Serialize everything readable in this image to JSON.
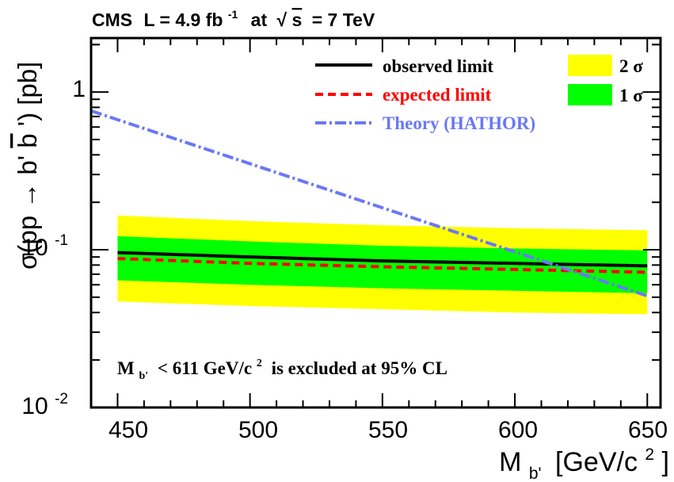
{
  "header": {
    "experiment": "CMS",
    "lumi_prefix": "L = 4.9 fb",
    "lumi_exp": "-1",
    "energy_prefix": "at",
    "sqrt_s": "s",
    "energy_value": "= 7 TeV"
  },
  "axes": {
    "ylabel_main": "σ(pp → b'",
    "ylabel_bbar": "b",
    "ylabel_tail": "') [pb]",
    "xlabel_main": "M",
    "xlabel_sub": "b'",
    "xlabel_unit": "[GeV/c",
    "xlabel_exp": "2",
    "xlabel_close": "]",
    "x_ticks": [
      "450",
      "500",
      "550",
      "600",
      "650"
    ],
    "y_tick_one": "1",
    "y_tick_base": "10",
    "y_tick_exp_m1": "-1",
    "y_tick_exp_m2": "-2"
  },
  "legend": {
    "observed": "observed limit",
    "expected": "expected limit",
    "theory": "Theory (HATHOR)",
    "two_sigma": "2 σ",
    "one_sigma": "1 σ"
  },
  "annotation": {
    "main": "M",
    "sub": "b'",
    "text": "< 611 GeV/c",
    "exp": "2",
    "tail": "is excluded at 95% CL"
  },
  "colors": {
    "observed": "#000000",
    "expected": "#ff0000",
    "theory": "#6a78f5",
    "two_sigma": "#ffff00",
    "one_sigma": "#00ff00",
    "frame": "#000000"
  },
  "chart_data": {
    "type": "line",
    "x_range": [
      440,
      655
    ],
    "y_range": [
      0.01,
      2.2
    ],
    "y_scale": "log",
    "grid": false,
    "legend_position": "top-right",
    "x": [
      450,
      500,
      550,
      600,
      650
    ],
    "series": [
      {
        "name": "observed limit",
        "values": [
          0.096,
          0.09,
          0.085,
          0.082,
          0.079
        ]
      },
      {
        "name": "expected limit",
        "values": [
          0.088,
          0.082,
          0.078,
          0.075,
          0.072
        ]
      },
      {
        "name": "Theory (HATHOR)",
        "values": [
          0.62,
          0.35,
          0.18,
          0.095,
          0.051
        ]
      }
    ],
    "bands": [
      {
        "name": "2 σ",
        "lower": [
          0.047,
          0.044,
          0.042,
          0.04,
          0.039
        ],
        "upper": [
          0.165,
          0.152,
          0.143,
          0.137,
          0.133
        ]
      },
      {
        "name": "1 σ",
        "lower": [
          0.064,
          0.06,
          0.057,
          0.055,
          0.053
        ],
        "upper": [
          0.122,
          0.113,
          0.106,
          0.102,
          0.099
        ]
      }
    ],
    "theory_extended": {
      "x": [
        440,
        650
      ],
      "values": [
        0.76,
        0.051
      ]
    },
    "exclusion_limit": 611,
    "confidence_level": "95%"
  }
}
